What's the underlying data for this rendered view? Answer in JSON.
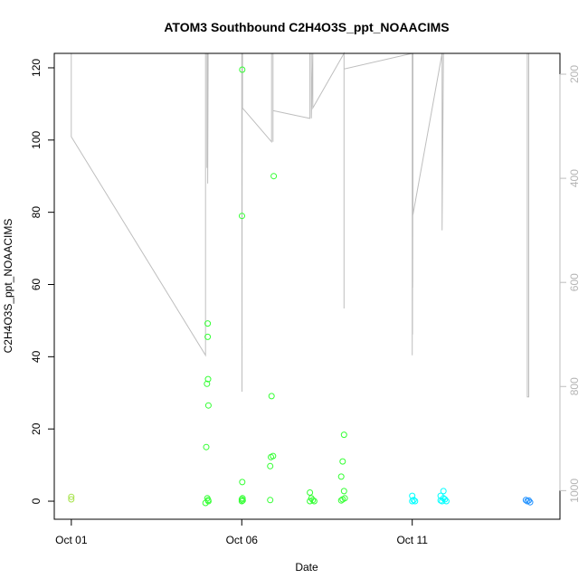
{
  "chart_data": {
    "type": "scatter",
    "title": "ATOM3 Southbound C2H4O3S_ppt_NOAACIMS",
    "xlabel": "Date",
    "ylabel": "C2H4O3S_ppt_NOAACIMS",
    "xlim": [
      "2017-09-30T12:00",
      "2017-10-15T08:00"
    ],
    "ylim": [
      -5,
      124
    ],
    "x_ticks": [
      {
        "label": "Oct 01",
        "value": "2017-10-01T00:00"
      },
      {
        "label": "Oct 06",
        "value": "2017-10-06T00:00"
      },
      {
        "label": "Oct 11",
        "value": "2017-10-11T00:00"
      }
    ],
    "y_ticks": [
      0,
      20,
      40,
      60,
      80,
      100,
      120
    ],
    "y2_axis": {
      "description": "secondary right axis, inverted (pressure-like), grey",
      "ticks": [
        200,
        400,
        600,
        800,
        1000
      ],
      "lim_top": 160,
      "lim_bottom": 1055,
      "color": "#bebebe"
    },
    "grid": false,
    "colors": {
      "points_early": "#a6e34a",
      "points_mid": "#33ff33",
      "points_late": "#00ffff",
      "points_last": "#1e90ff",
      "altitude_line": "#bebebe"
    },
    "series": [
      {
        "values_note": "scatter points [time, value]",
        "points": [
          [
            "2017-10-01T00:00",
            1.2
          ],
          [
            "2017-10-01T00:00",
            0.5
          ],
          [
            "2017-10-04T22:30",
            -0.5
          ],
          [
            "2017-10-04T23:00",
            15
          ],
          [
            "2017-10-04T23:30",
            32.5
          ],
          [
            "2017-10-04T23:45",
            0.8
          ],
          [
            "2017-10-05T00:00",
            45.5
          ],
          [
            "2017-10-05T00:00",
            49.2
          ],
          [
            "2017-10-05T00:15",
            33.8
          ],
          [
            "2017-10-05T00:20",
            0.3
          ],
          [
            "2017-10-05T00:30",
            26.5
          ],
          [
            "2017-10-05T00:30",
            0
          ],
          [
            "2017-10-06T00:00",
            0
          ],
          [
            "2017-10-06T00:00",
            0.5
          ],
          [
            "2017-10-06T00:10",
            79
          ],
          [
            "2017-10-06T00:20",
            119.5
          ],
          [
            "2017-10-06T00:20",
            5.3
          ],
          [
            "2017-10-06T00:30",
            0.8
          ],
          [
            "2017-10-06T00:40",
            0.2
          ],
          [
            "2017-10-06T20:00",
            0.3
          ],
          [
            "2017-10-06T20:00",
            9.7
          ],
          [
            "2017-10-06T20:30",
            12.2
          ],
          [
            "2017-10-06T21:00",
            29.1
          ],
          [
            "2017-10-06T22:00",
            12.5
          ],
          [
            "2017-10-06T22:30",
            90
          ],
          [
            "2017-10-08T00:00",
            0
          ],
          [
            "2017-10-08T00:00",
            2.4
          ],
          [
            "2017-10-08T01:00",
            0.8
          ],
          [
            "2017-10-08T02:00",
            0.3
          ],
          [
            "2017-10-08T03:00",
            0
          ],
          [
            "2017-10-08T22:00",
            0.2
          ],
          [
            "2017-10-08T22:00",
            6.8
          ],
          [
            "2017-10-08T23:00",
            11
          ],
          [
            "2017-10-08T23:00",
            0.5
          ],
          [
            "2017-10-09T00:00",
            2.8
          ],
          [
            "2017-10-09T00:00",
            18.4
          ],
          [
            "2017-10-09T00:30",
            0.8
          ],
          [
            "2017-10-11T00:00",
            1.5
          ],
          [
            "2017-10-11T00:00",
            0
          ],
          [
            "2017-10-11T01:00",
            0.3
          ],
          [
            "2017-10-11T02:00",
            0
          ],
          [
            "2017-10-11T20:00",
            0.2
          ],
          [
            "2017-10-11T20:00",
            1.5
          ],
          [
            "2017-10-11T21:00",
            0
          ],
          [
            "2017-10-11T22:00",
            0.8
          ],
          [
            "2017-10-11T22:00",
            2.8
          ],
          [
            "2017-10-11T23:00",
            0.5
          ],
          [
            "2017-10-12T00:00",
            0
          ],
          [
            "2017-10-14T08:00",
            0.3
          ],
          [
            "2017-10-14T09:00",
            0
          ],
          [
            "2017-10-14T10:00",
            0.2
          ],
          [
            "2017-10-14T11:00",
            -0.3
          ]
        ]
      },
      {
        "values_note": "altitude/pressure trace on right axis [time, pressure]",
        "path": [
          [
            "2017-10-01T00:00",
            160
          ],
          [
            "2017-10-01T00:00",
            320
          ],
          [
            "2017-10-04T22:30",
            740
          ],
          [
            "2017-10-04T22:30",
            160
          ],
          [
            "2017-10-04T23:30",
            160
          ],
          [
            "2017-10-04T23:30",
            380
          ],
          [
            "2017-10-05T00:00",
            160
          ],
          [
            "2017-10-05T00:00",
            410
          ],
          [
            "2017-10-05T00:20",
            160
          ],
          [
            "2017-10-06T00:00",
            160
          ],
          [
            "2017-10-06T00:00",
            270
          ],
          [
            "2017-10-06T00:10",
            810
          ],
          [
            "2017-10-06T00:20",
            160
          ],
          [
            "2017-10-06T00:30",
            160
          ],
          [
            "2017-10-06T00:30",
            265
          ],
          [
            "2017-10-06T21:00",
            330
          ],
          [
            "2017-10-06T21:00",
            160
          ],
          [
            "2017-10-06T22:00",
            160
          ],
          [
            "2017-10-06T22:00",
            330
          ],
          [
            "2017-10-06T22:00",
            270
          ],
          [
            "2017-10-08T00:00",
            285
          ],
          [
            "2017-10-08T00:00",
            160
          ],
          [
            "2017-10-08T01:00",
            160
          ],
          [
            "2017-10-08T01:00",
            285
          ],
          [
            "2017-10-08T02:00",
            160
          ],
          [
            "2017-10-08T02:00",
            265
          ],
          [
            "2017-10-09T00:00",
            160
          ],
          [
            "2017-10-09T00:00",
            650
          ],
          [
            "2017-10-09T00:00",
            190
          ],
          [
            "2017-10-11T00:00",
            160
          ],
          [
            "2017-10-11T00:00",
            740
          ],
          [
            "2017-10-11T00:10",
            160
          ],
          [
            "2017-10-11T00:10",
            700
          ],
          [
            "2017-10-11T00:20",
            160
          ],
          [
            "2017-10-11T00:20",
            610
          ],
          [
            "2017-10-11T00:30",
            160
          ],
          [
            "2017-10-11T00:30",
            470
          ],
          [
            "2017-10-11T21:00",
            160
          ],
          [
            "2017-10-11T21:00",
            500
          ],
          [
            "2017-10-11T22:00",
            160
          ],
          [
            "2017-10-13T02:00",
            160
          ],
          [
            "2017-10-14T09:00",
            160
          ],
          [
            "2017-10-14T09:00",
            820
          ],
          [
            "2017-10-14T10:00",
            820
          ],
          [
            "2017-10-14T10:00",
            160
          ]
        ]
      }
    ]
  }
}
